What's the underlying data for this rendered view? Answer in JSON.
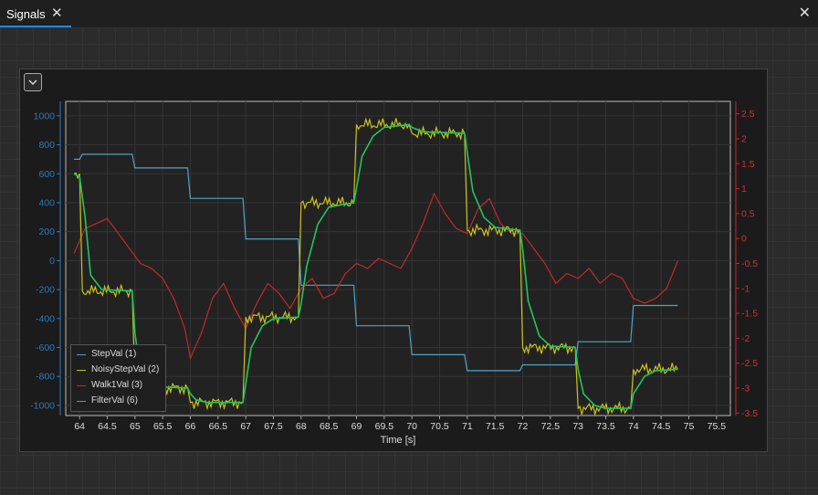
{
  "tab": {
    "label": "Signals",
    "close_glyph": "✕"
  },
  "window": {
    "close_glyph": "✕"
  },
  "colors": {
    "step": "#4fa3c7",
    "noisy": "#c9c21a",
    "walk": "#c02a2a",
    "filter": "#22c55e"
  },
  "chart_data": {
    "type": "line",
    "xlabel": "Time [s]",
    "xlim": [
      63.75,
      75.75
    ],
    "x_ticks": [
      "64",
      "64.5",
      "65",
      "65.5",
      "66",
      "66.5",
      "67",
      "67.5",
      "68",
      "68.5",
      "69",
      "69.5",
      "70",
      "70.5",
      "71",
      "71.5",
      "72",
      "72.5",
      "73",
      "73.5",
      "74",
      "74.5",
      "75",
      "75.5"
    ],
    "ylim_left": [
      -1070,
      1100
    ],
    "y_ticks_left": [
      "1000",
      "800",
      "600",
      "400",
      "200",
      "0",
      "-200",
      "-400",
      "-600",
      "-800",
      "-1000"
    ],
    "ylim_right": [
      -3.55,
      2.75
    ],
    "y_ticks_right": [
      "2.5",
      "2",
      "1.5",
      "1",
      "0.5",
      "0",
      "-0.5",
      "-1",
      "-1.5",
      "-2",
      "-2.5",
      "-3",
      "-3.5"
    ],
    "series": [
      {
        "name": "StepVal (1)",
        "axis": "left",
        "x": [
          63.9,
          64.0,
          64.05,
          64.55,
          64.95,
          65.0,
          65.95,
          66.0,
          66.95,
          67.0,
          67.95,
          68.0,
          68.95,
          69.0,
          69.95,
          70.0,
          70.95,
          71.0,
          71.95,
          72.0,
          72.95,
          73.0,
          73.95,
          74.0,
          74.8
        ],
        "y": [
          700,
          700,
          735,
          735,
          735,
          640,
          640,
          430,
          430,
          150,
          150,
          -170,
          -170,
          -450,
          -450,
          -650,
          -650,
          -760,
          -760,
          -720,
          -720,
          -560,
          -560,
          -310,
          -310
        ]
      },
      {
        "name": "NoisyStepVal (2)",
        "axis": "left",
        "x": [
          63.9,
          64.0,
          64.05,
          64.95,
          65.0,
          65.95,
          66.0,
          66.95,
          67.0,
          67.95,
          68.0,
          68.95,
          69.0,
          69.95,
          70.0,
          70.95,
          71.0,
          71.95,
          72.0,
          72.95,
          73.0,
          73.95,
          74.0,
          74.8
        ],
        "y": [
          600,
          600,
          -210,
          -210,
          -880,
          -880,
          -980,
          -980,
          -390,
          -390,
          400,
          400,
          940,
          940,
          880,
          880,
          210,
          210,
          -600,
          -600,
          -1020,
          -1020,
          -750,
          -750
        ]
      },
      {
        "name": "Walk1Val (3)",
        "axis": "right",
        "x": [
          63.9,
          64.1,
          64.3,
          64.5,
          64.7,
          64.9,
          65.1,
          65.3,
          65.5,
          65.7,
          65.9,
          66.0,
          66.2,
          66.4,
          66.6,
          66.8,
          67.0,
          67.2,
          67.4,
          67.6,
          67.8,
          68.0,
          68.2,
          68.4,
          68.6,
          68.8,
          69.0,
          69.2,
          69.4,
          69.6,
          69.8,
          70.0,
          70.2,
          70.4,
          70.6,
          70.8,
          71.0,
          71.2,
          71.4,
          71.6,
          71.8,
          72.0,
          72.2,
          72.4,
          72.6,
          72.8,
          73.0,
          73.2,
          73.4,
          73.6,
          73.8,
          74.0,
          74.2,
          74.4,
          74.6,
          74.8
        ],
        "y": [
          -0.3,
          0.2,
          0.3,
          0.4,
          0.1,
          -0.2,
          -0.5,
          -0.6,
          -0.8,
          -1.2,
          -1.8,
          -2.4,
          -1.9,
          -1.2,
          -0.9,
          -1.4,
          -1.8,
          -1.3,
          -0.9,
          -1.1,
          -1.4,
          -1.0,
          -0.8,
          -1.2,
          -1.1,
          -0.7,
          -0.5,
          -0.6,
          -0.4,
          -0.5,
          -0.6,
          -0.2,
          0.3,
          0.9,
          0.5,
          0.2,
          0.1,
          0.6,
          0.8,
          0.3,
          0.1,
          0.1,
          -0.2,
          -0.5,
          -0.9,
          -0.7,
          -0.8,
          -0.6,
          -0.9,
          -0.7,
          -0.8,
          -1.2,
          -1.3,
          -1.2,
          -1.0,
          -0.45
        ]
      },
      {
        "name": "FilterVal (6)",
        "axis": "left",
        "x": [
          63.9,
          64.0,
          64.1,
          64.2,
          64.4,
          64.95,
          65.0,
          65.1,
          65.3,
          65.95,
          66.0,
          66.1,
          66.3,
          66.95,
          67.0,
          67.1,
          67.3,
          67.5,
          67.95,
          68.0,
          68.1,
          68.3,
          68.5,
          68.95,
          69.0,
          69.1,
          69.3,
          69.5,
          69.95,
          70.0,
          70.2,
          70.95,
          71.0,
          71.1,
          71.3,
          71.5,
          71.95,
          72.0,
          72.1,
          72.3,
          72.5,
          72.95,
          73.0,
          73.1,
          73.3,
          73.5,
          73.95,
          74.0,
          74.2,
          74.4,
          74.8
        ],
        "y": [
          600,
          580,
          300,
          -100,
          -200,
          -210,
          -500,
          -780,
          -870,
          -880,
          -920,
          -960,
          -980,
          -980,
          -850,
          -600,
          -450,
          -400,
          -390,
          -300,
          -40,
          250,
          370,
          400,
          500,
          720,
          860,
          920,
          940,
          920,
          890,
          880,
          750,
          480,
          300,
          230,
          210,
          80,
          -280,
          -520,
          -590,
          -600,
          -750,
          -920,
          -1000,
          -1020,
          -1020,
          -920,
          -800,
          -760,
          -750
        ]
      }
    ]
  }
}
